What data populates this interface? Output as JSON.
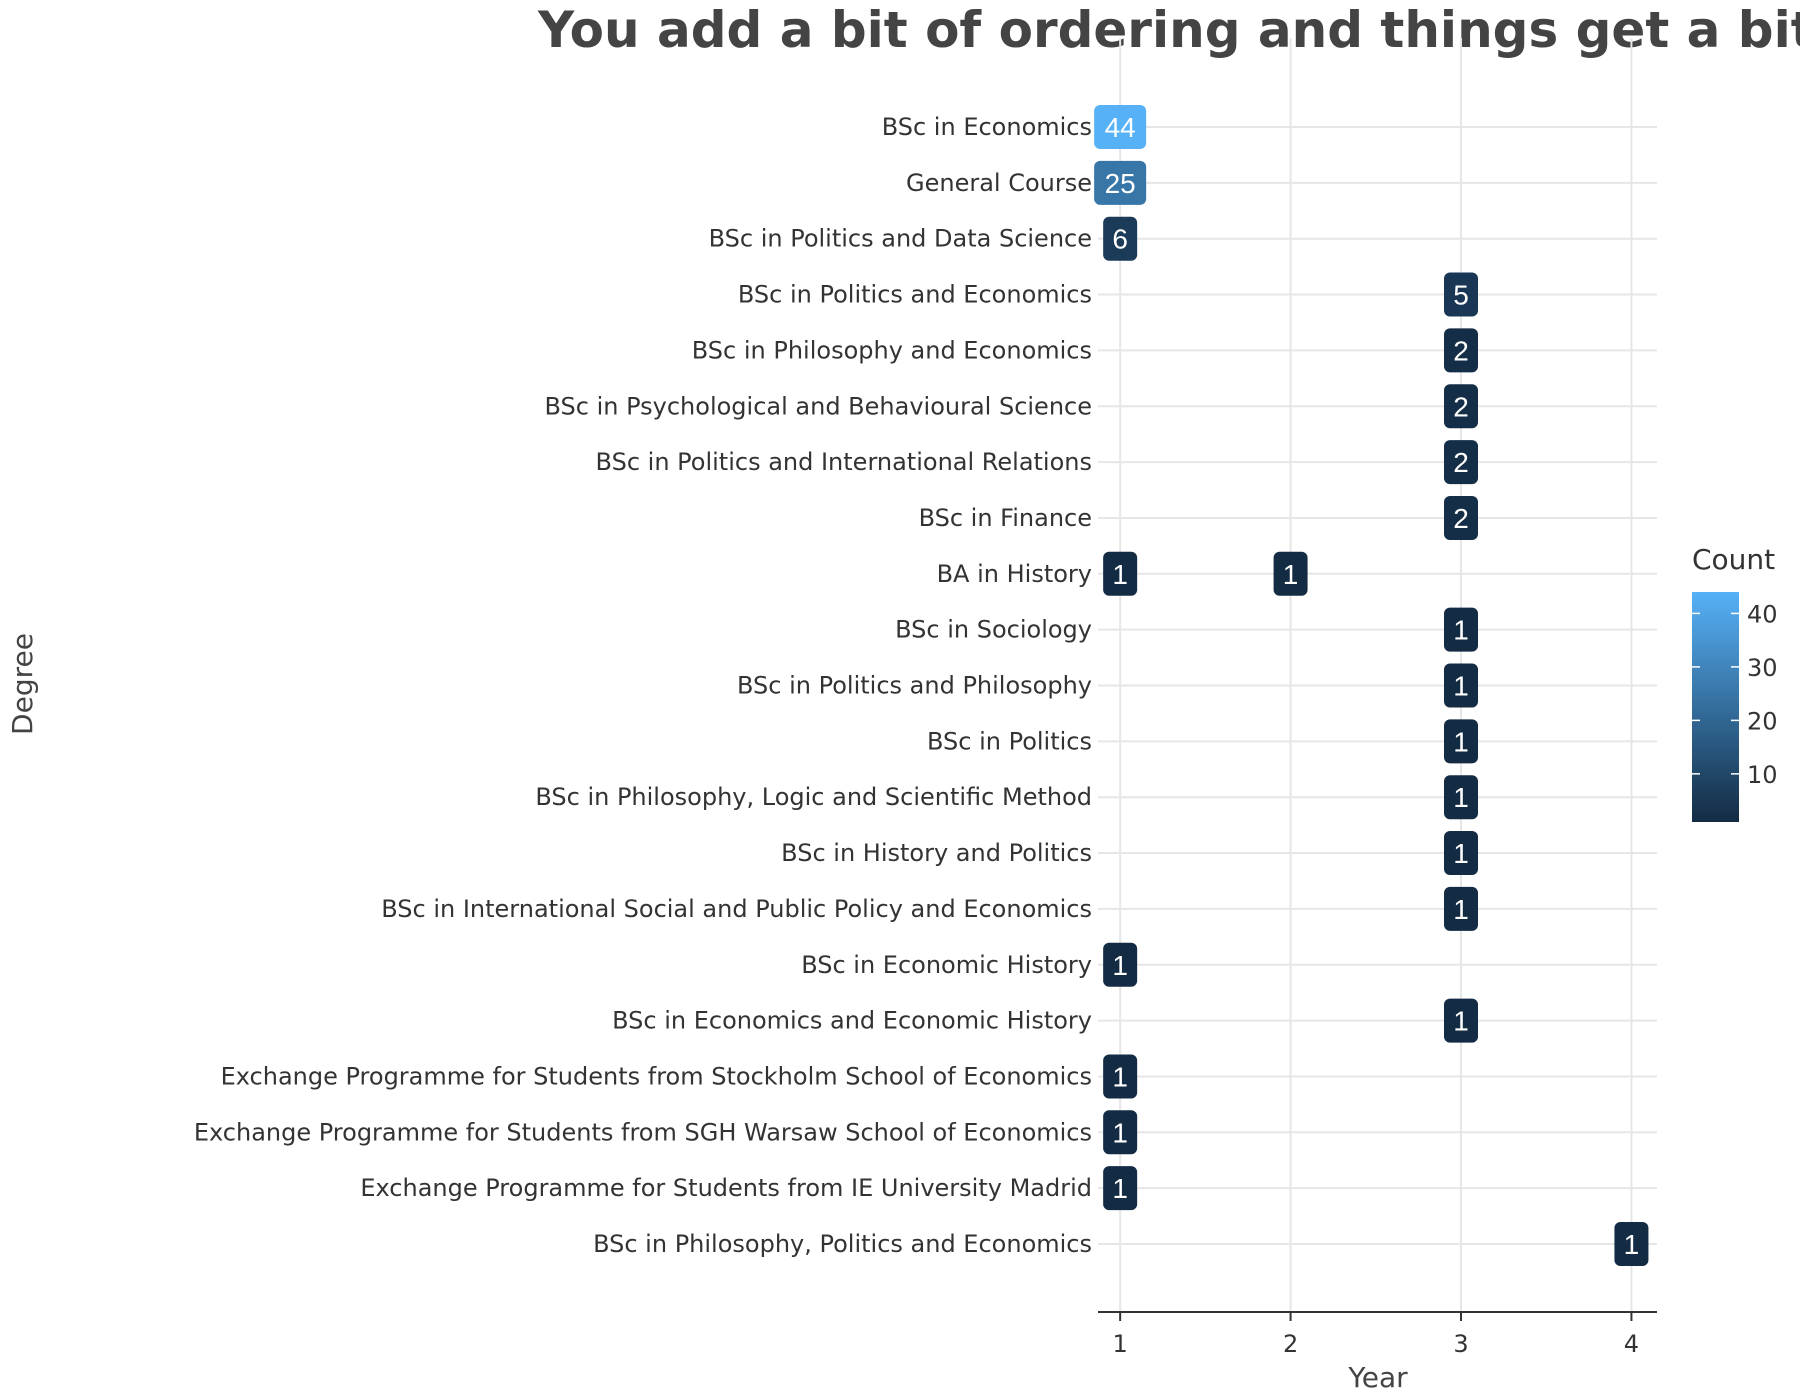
{
  "chart_data": {
    "type": "table",
    "title": "You add a bit of ordering and things get a bit better",
    "xlabel": "Year",
    "ylabel": "Degree",
    "x_ticks": [
      1,
      2,
      3,
      4
    ],
    "xlim": [
      0.87,
      4.15
    ],
    "legend": {
      "title": "Count",
      "ticks": [
        10,
        20,
        30,
        40
      ],
      "range": [
        1,
        44
      ],
      "low_color": "#132b43",
      "high_color": "#56b1f7",
      "placement": "right"
    },
    "categories": [
      "BSc in Economics",
      "General Course",
      "BSc in Politics and Data Science",
      "BSc in Politics and Economics",
      "BSc in Philosophy and Economics",
      "BSc in Psychological and Behavioural Science",
      "BSc in Politics and International Relations",
      "BSc in Finance",
      "BA in History",
      "BSc in Sociology",
      "BSc in Politics and Philosophy",
      "BSc in Politics",
      "BSc in Philosophy, Logic and Scientific Method",
      "BSc in History and Politics",
      "BSc in International Social and Public Policy and Economics",
      "BSc in Economic History",
      "BSc in Economics and Economic History",
      "Exchange Programme for Students from Stockholm School of Economics",
      "Exchange Programme for Students from SGH Warsaw School of Economics",
      "Exchange Programme for Students from IE University Madrid",
      "BSc in Philosophy, Politics and Economics"
    ],
    "points": [
      {
        "degree": "BSc in Economics",
        "year": 1,
        "count": 44
      },
      {
        "degree": "General Course",
        "year": 1,
        "count": 25
      },
      {
        "degree": "BSc in Politics and Data Science",
        "year": 1,
        "count": 6
      },
      {
        "degree": "BSc in Politics and Economics",
        "year": 3,
        "count": 5
      },
      {
        "degree": "BSc in Philosophy and Economics",
        "year": 3,
        "count": 2
      },
      {
        "degree": "BSc in Psychological and Behavioural Science",
        "year": 3,
        "count": 2
      },
      {
        "degree": "BSc in Politics and International Relations",
        "year": 3,
        "count": 2
      },
      {
        "degree": "BSc in Finance",
        "year": 3,
        "count": 2
      },
      {
        "degree": "BA in History",
        "year": 1,
        "count": 1
      },
      {
        "degree": "BA in History",
        "year": 2,
        "count": 1
      },
      {
        "degree": "BSc in Sociology",
        "year": 3,
        "count": 1
      },
      {
        "degree": "BSc in Politics and Philosophy",
        "year": 3,
        "count": 1
      },
      {
        "degree": "BSc in Politics",
        "year": 3,
        "count": 1
      },
      {
        "degree": "BSc in Philosophy, Logic and Scientific Method",
        "year": 3,
        "count": 1
      },
      {
        "degree": "BSc in History and Politics",
        "year": 3,
        "count": 1
      },
      {
        "degree": "BSc in International Social and Public Policy and Economics",
        "year": 3,
        "count": 1
      },
      {
        "degree": "BSc in Economic History",
        "year": 1,
        "count": 1
      },
      {
        "degree": "BSc in Economics and Economic History",
        "year": 3,
        "count": 1
      },
      {
        "degree": "Exchange Programme for Students from Stockholm School of Economics",
        "year": 1,
        "count": 1
      },
      {
        "degree": "Exchange Programme for Students from SGH Warsaw School of Economics",
        "year": 1,
        "count": 1
      },
      {
        "degree": "Exchange Programme for Students from IE University Madrid",
        "year": 1,
        "count": 1
      },
      {
        "degree": "BSc in Philosophy, Politics and Economics",
        "year": 4,
        "count": 1
      }
    ],
    "grid": true
  }
}
